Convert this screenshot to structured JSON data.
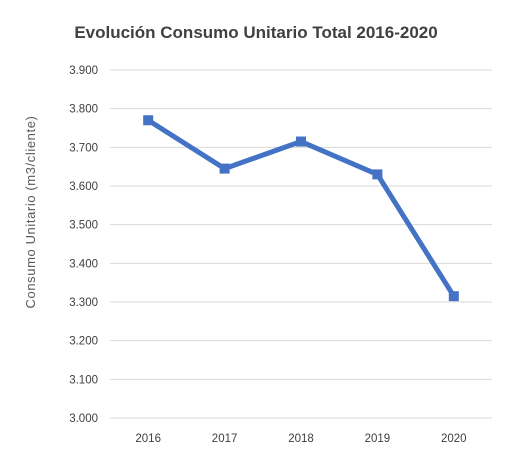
{
  "chart_data": {
    "type": "line",
    "title": "Evolución Consumo Unitario Total 2016-2020",
    "xlabel": "",
    "ylabel": "Consumo Unitario (m3/cliente)",
    "categories": [
      "2016",
      "2017",
      "2018",
      "2019",
      "2020"
    ],
    "series": [
      {
        "values": [
          3.77,
          3.645,
          3.715,
          3.63,
          3.315
        ],
        "color": "#4472C4"
      }
    ],
    "ylim": [
      3.0,
      3.9
    ],
    "yticks": [
      {
        "value": 3.0,
        "label": "3.000"
      },
      {
        "value": 3.1,
        "label": "3.100"
      },
      {
        "value": 3.2,
        "label": "3.200"
      },
      {
        "value": 3.3,
        "label": "3.300"
      },
      {
        "value": 3.4,
        "label": "3.400"
      },
      {
        "value": 3.5,
        "label": "3.500"
      },
      {
        "value": 3.6,
        "label": "3.600"
      },
      {
        "value": 3.7,
        "label": "3.700"
      },
      {
        "value": 3.8,
        "label": "3.800"
      },
      {
        "value": 3.9,
        "label": "3.900"
      }
    ],
    "grid": true,
    "legend": "none",
    "gridColor": "#d9d9d9"
  }
}
